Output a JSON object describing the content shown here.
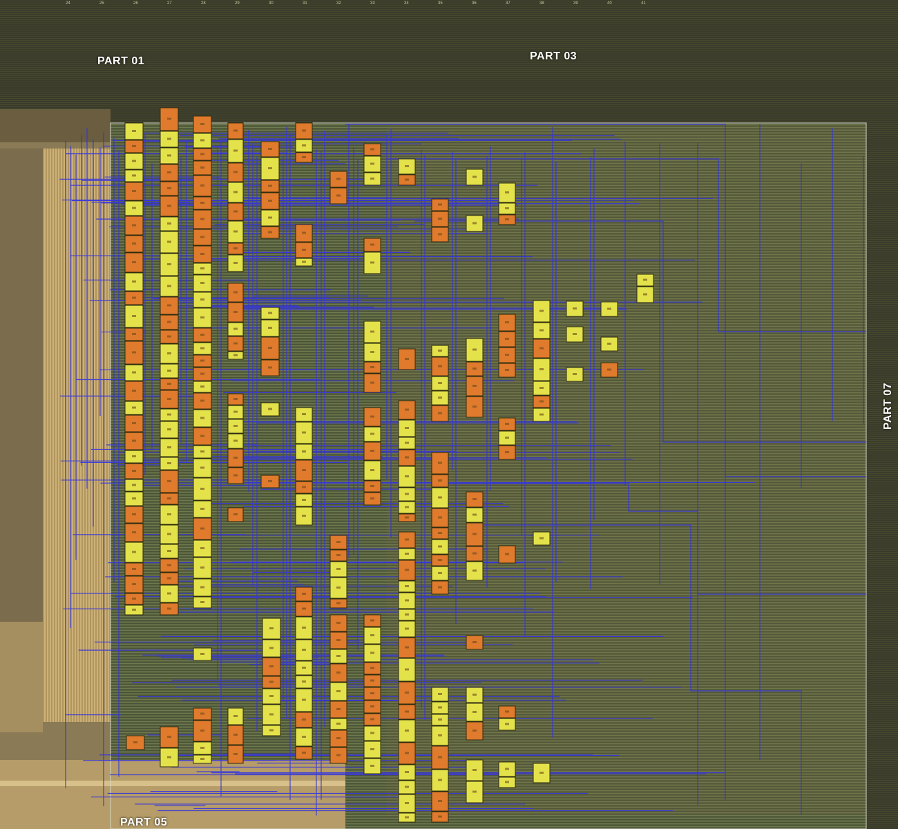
{
  "parts": {
    "top_left": "PART 01",
    "top_right": "PART 03",
    "bottom": "PART 05",
    "right": "PART 07"
  },
  "colors": {
    "background_die": "#5f6a45",
    "dark_region": "#3b3d2b",
    "bond_pad_gold": "#c9a86a",
    "wire": "#3030d8",
    "cell_yellow": "#e4e24a",
    "cell_orange": "#e07a2c"
  },
  "column_numbers": [
    "24",
    "25",
    "26",
    "27",
    "28",
    "29",
    "30",
    "31",
    "32",
    "33",
    "34",
    "35",
    "36",
    "37",
    "38",
    "39",
    "40",
    "41"
  ]
}
